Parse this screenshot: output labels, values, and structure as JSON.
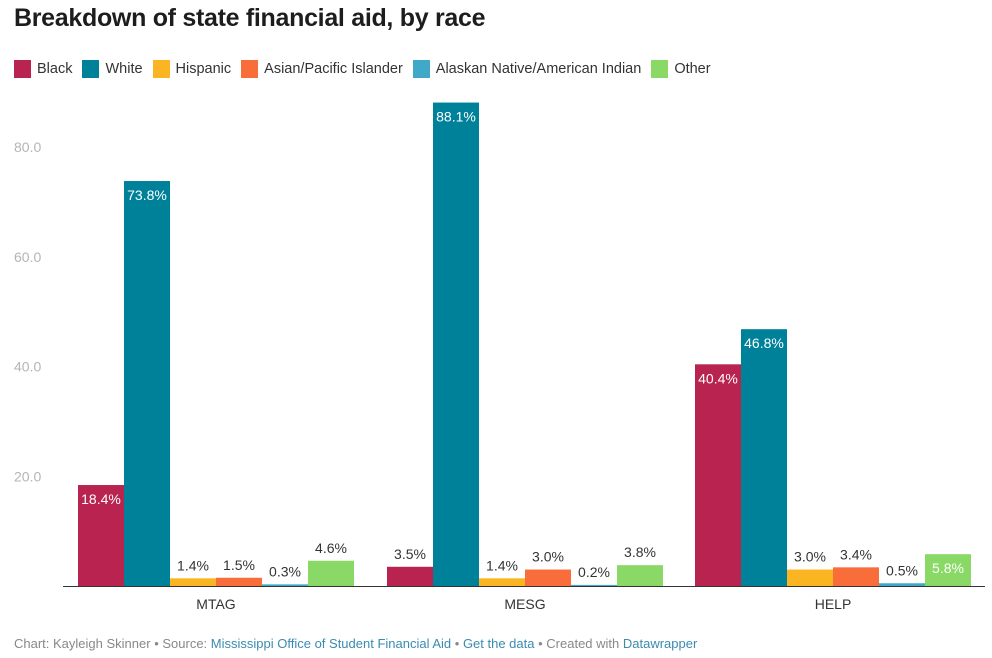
{
  "chart_data": {
    "type": "bar",
    "title": "Breakdown of state financial aid, by race",
    "categories": [
      "MTAG",
      "MESG",
      "HELP"
    ],
    "series": [
      {
        "name": "Black",
        "color": "#b8234f",
        "values": [
          18.4,
          3.5,
          40.4
        ]
      },
      {
        "name": "White",
        "color": "#00819a",
        "values": [
          73.8,
          88.1,
          46.8
        ]
      },
      {
        "name": "Hispanic",
        "color": "#fbb422",
        "values": [
          1.4,
          1.4,
          3.0
        ]
      },
      {
        "name": "Asian/Pacific Islander",
        "color": "#f86d3a",
        "values": [
          1.5,
          3.0,
          3.4
        ]
      },
      {
        "name": "Alaskan Native/American Indian",
        "color": "#3fa9c7",
        "values": [
          0.3,
          0.2,
          0.5
        ]
      },
      {
        "name": "Other",
        "color": "#8ad966",
        "values": [
          4.6,
          3.8,
          5.8
        ]
      }
    ],
    "yticks": [
      "20.0",
      "40.0",
      "60.0",
      "80.0"
    ],
    "ylim": [
      0,
      80
    ],
    "value_suffix": "%",
    "grid": false,
    "legend": "top-left"
  },
  "footer": {
    "chart_by": "Chart: Kayleigh Skinner",
    "sep1": " • Source: ",
    "source": "Mississippi Office of Student Financial Aid",
    "sep2": " • ",
    "get_data": "Get the data",
    "sep3": " • Created with ",
    "tool": "Datawrapper"
  }
}
